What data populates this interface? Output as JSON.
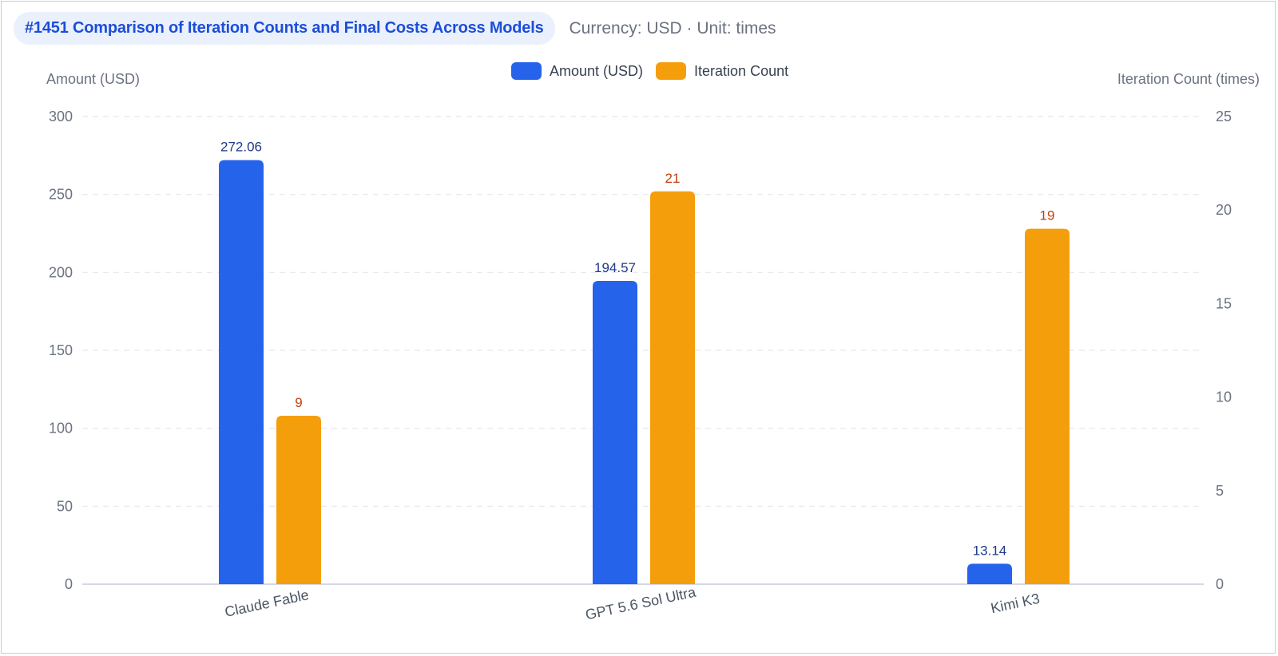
{
  "header": {
    "title": "#1451 Comparison of Iteration Counts and Final Costs Across Models",
    "subtitle": "Currency: USD · Unit: times"
  },
  "legend": {
    "items": [
      {
        "label": "Amount (USD)",
        "color": "#2563eb"
      },
      {
        "label": "Iteration Count",
        "color": "#f59e0b"
      }
    ]
  },
  "colors": {
    "amount": "#2563eb",
    "iterations": "#f59e0b",
    "amount_label": "#1e3a8a",
    "iterations_label": "#c2410c",
    "grid": "#e5e7eb",
    "axis": "#c7cbe0"
  },
  "chart_data": {
    "type": "bar",
    "categories": [
      "Claude Fable",
      "GPT 5.6 Sol Ultra",
      "Kimi K3"
    ],
    "series": [
      {
        "name": "Amount (USD)",
        "axis": "left",
        "values": [
          272.06,
          194.57,
          13.14
        ],
        "labels": [
          "272.06",
          "194.57",
          "13.14"
        ]
      },
      {
        "name": "Iteration Count",
        "axis": "right",
        "values": [
          9,
          21,
          19
        ],
        "labels": [
          "9",
          "21",
          "19"
        ]
      }
    ],
    "ylabel": "Amount (USD)",
    "ylabel_right": "Iteration Count (times)",
    "ylim": [
      0,
      300
    ],
    "ylim_right": [
      0,
      25
    ],
    "yticks": [
      0,
      50,
      100,
      150,
      200,
      250,
      300
    ],
    "yticks_right": [
      0,
      5,
      10,
      15,
      20,
      25
    ],
    "grid": true,
    "legend_position": "top-center"
  }
}
